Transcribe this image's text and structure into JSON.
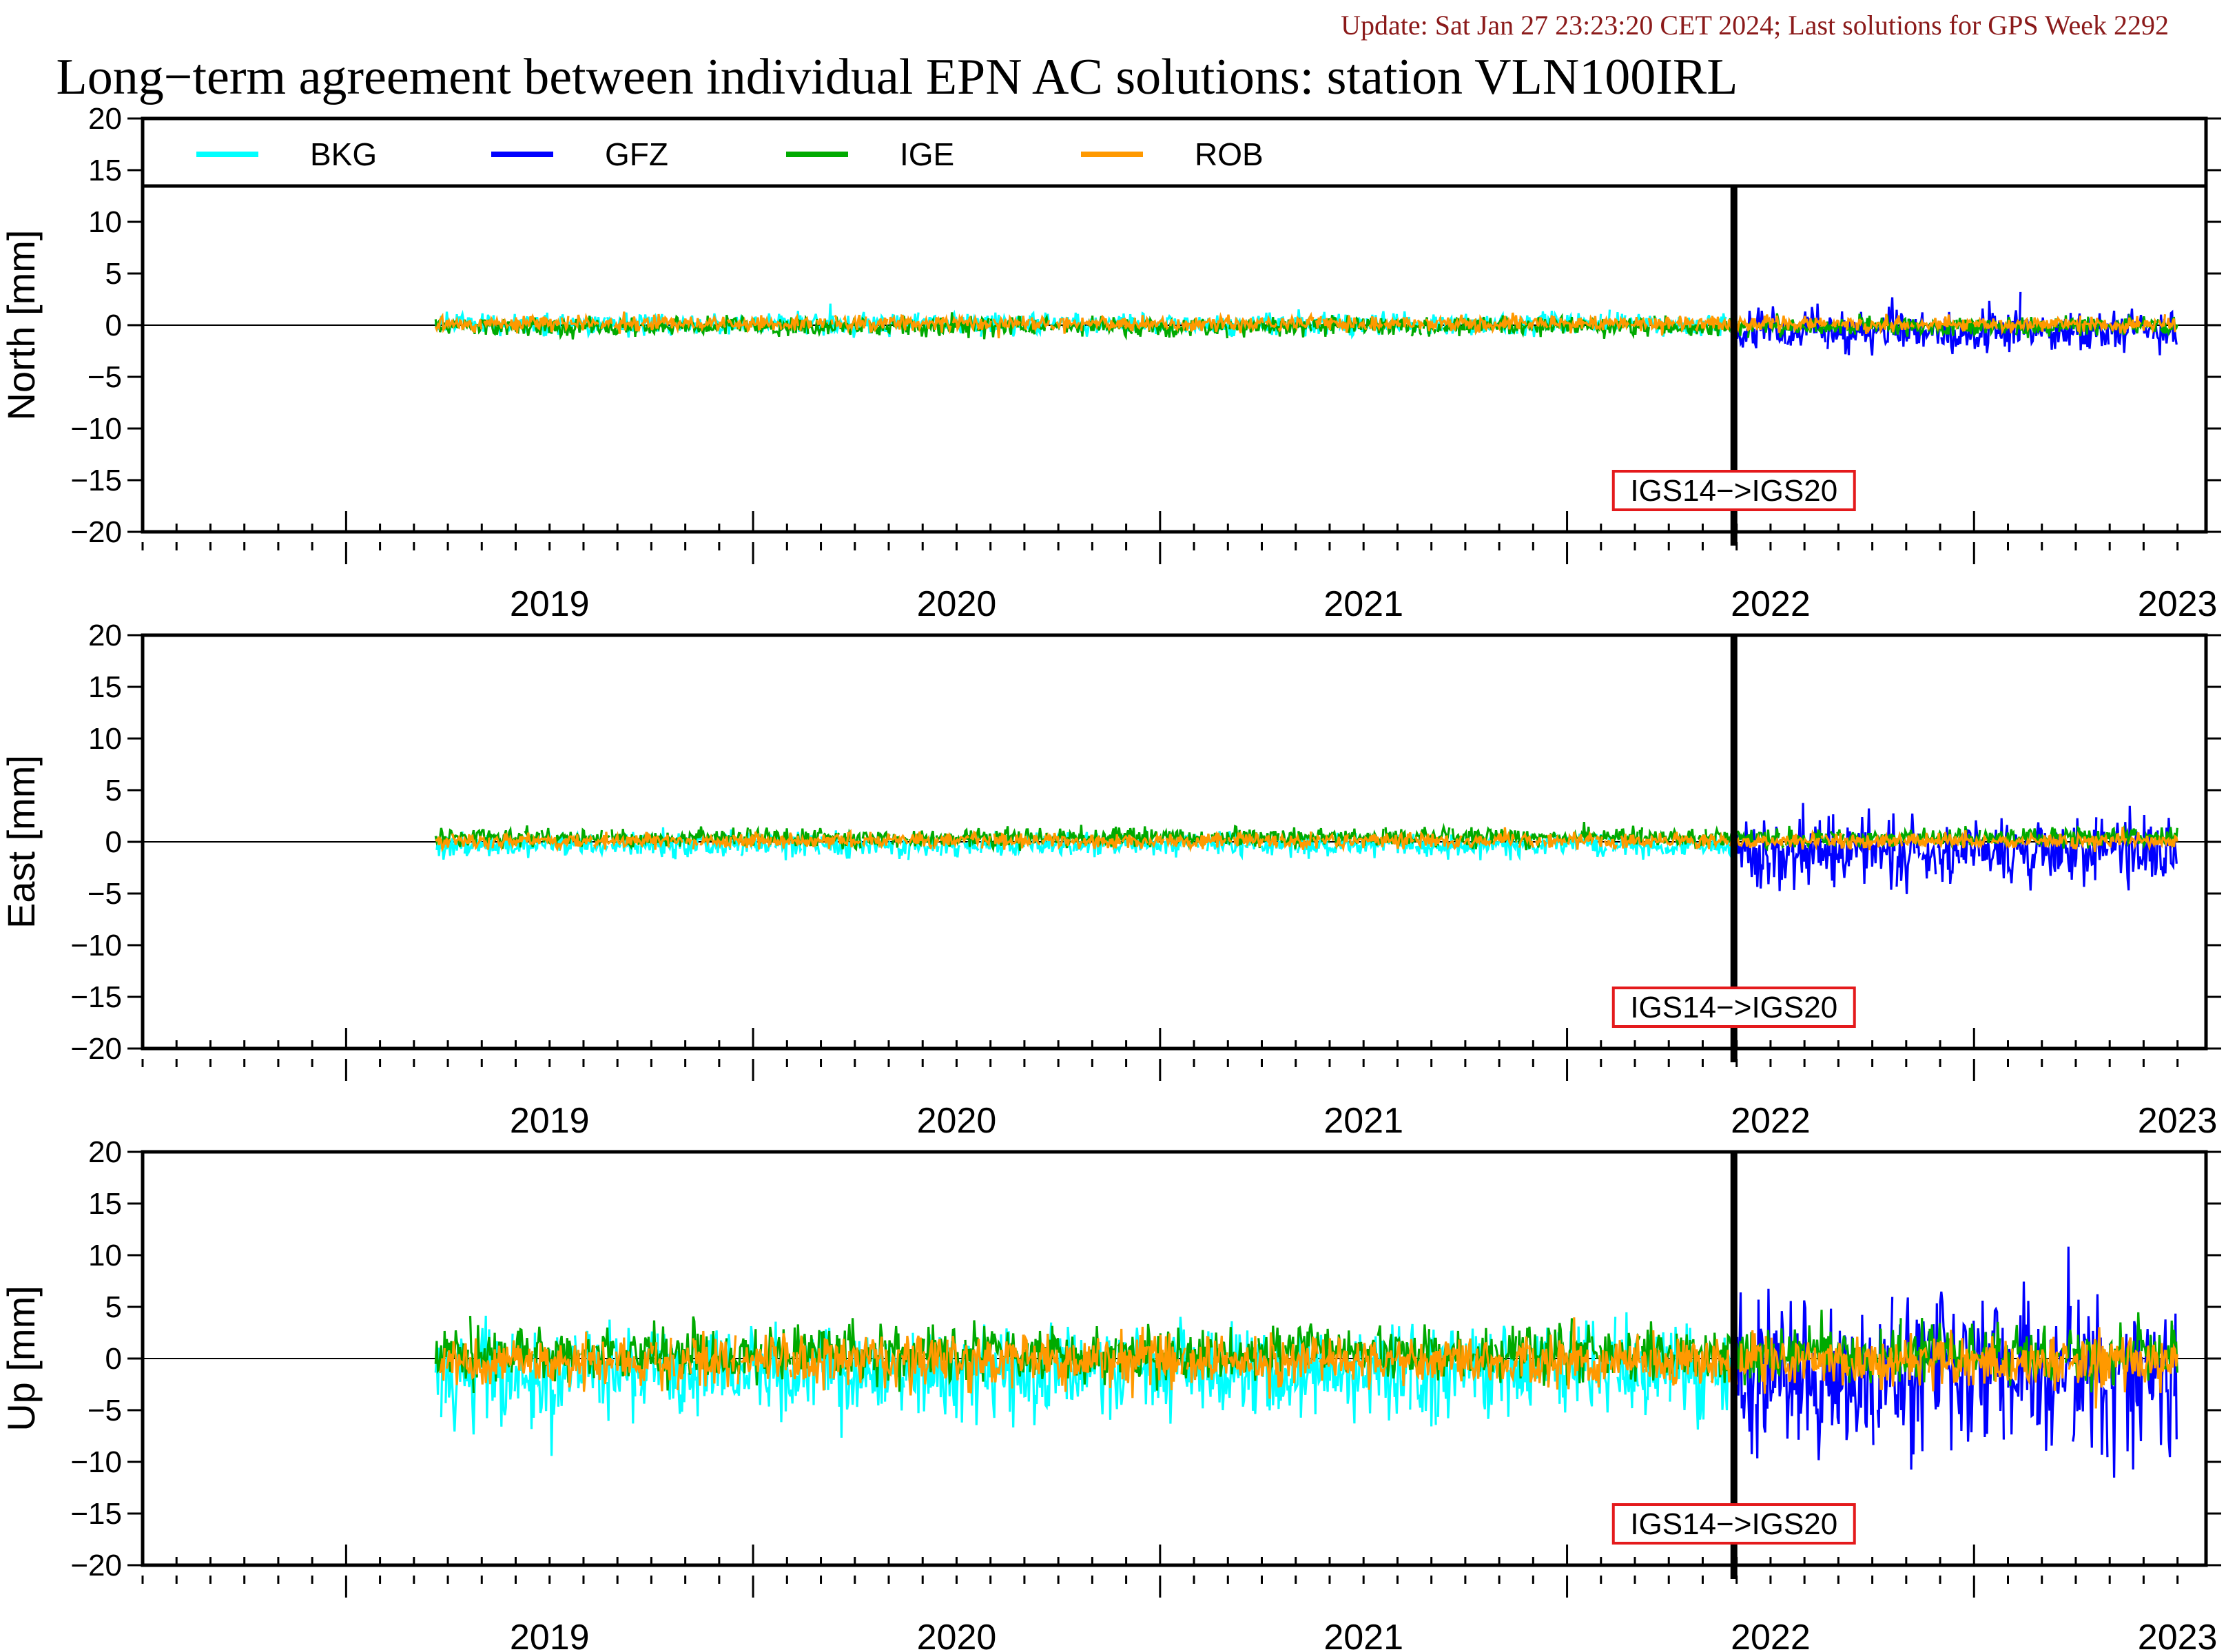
{
  "update_text": "Update: Sat Jan 27 23:23:20 CET 2024; Last solutions for GPS Week 2292",
  "update_color": "#8b1a1a",
  "title": "Long−term agreement between individual EPN AC solutions: station VLN100IRL",
  "transition_label": "IGS14−>IGS20",
  "transition_label_color": "#e41a1c",
  "legend": [
    {
      "name": "BKG",
      "color": "#00ffff"
    },
    {
      "name": "GFZ",
      "color": "#0000ff"
    },
    {
      "name": "IGE",
      "color": "#00aa00"
    },
    {
      "name": "ROB",
      "color": "#ff9900"
    }
  ],
  "chart_data": [
    {
      "type": "line",
      "panel": "north",
      "ylabel": "North [mm]",
      "ylim": [
        -20,
        20
      ],
      "yticks": [
        "20",
        "15",
        "10",
        "5",
        "0",
        "−5",
        "−10",
        "−15",
        "−20"
      ],
      "xlim": [
        2018.5,
        2023.57
      ],
      "year_labels": [
        "2019",
        "2020",
        "2021",
        "2022",
        "2023"
      ],
      "transition_x": 2022.41,
      "series": [
        {
          "name": "BKG",
          "x_start": 2019.22,
          "x_end": 2022.41,
          "amplitude": 0.5,
          "bias": 0.1
        },
        {
          "name": "GFZ",
          "x_start": 2022.41,
          "x_end": 2023.5,
          "amplitude": 1.0,
          "bias": -0.5
        },
        {
          "name": "IGE",
          "x_start": 2019.22,
          "x_end": 2023.5,
          "amplitude": 0.45,
          "bias": -0.1
        },
        {
          "name": "ROB",
          "x_start": 2019.22,
          "x_end": 2023.5,
          "amplitude": 0.35,
          "bias": 0.15
        }
      ]
    },
    {
      "type": "line",
      "panel": "east",
      "ylabel": "East [mm]",
      "ylim": [
        -20,
        20
      ],
      "yticks": [
        "20",
        "15",
        "10",
        "5",
        "0",
        "−5",
        "−10",
        "−15",
        "−20"
      ],
      "xlim": [
        2018.5,
        2023.57
      ],
      "year_labels": [
        "2019",
        "2020",
        "2021",
        "2022",
        "2023"
      ],
      "transition_x": 2022.41,
      "series": [
        {
          "name": "BKG",
          "x_start": 2019.22,
          "x_end": 2022.41,
          "amplitude": 0.55,
          "bias": -0.3
        },
        {
          "name": "GFZ",
          "x_start": 2022.41,
          "x_end": 2023.5,
          "amplitude": 1.6,
          "bias": -1.0
        },
        {
          "name": "IGE",
          "x_start": 2019.22,
          "x_end": 2023.5,
          "amplitude": 0.45,
          "bias": 0.4
        },
        {
          "name": "ROB",
          "x_start": 2019.22,
          "x_end": 2023.5,
          "amplitude": 0.35,
          "bias": 0.1
        }
      ]
    },
    {
      "type": "line",
      "panel": "up",
      "ylabel": "Up [mm]",
      "ylim": [
        -20,
        20
      ],
      "yticks": [
        "20",
        "15",
        "10",
        "5",
        "0",
        "−5",
        "−10",
        "−15",
        "−20"
      ],
      "xlim": [
        2018.5,
        2023.57
      ],
      "year_labels": [
        "2019",
        "2020",
        "2021",
        "2022",
        "2023"
      ],
      "transition_x": 2022.41,
      "series": [
        {
          "name": "BKG",
          "x_start": 2019.22,
          "x_end": 2022.41,
          "amplitude": 2.2,
          "bias": -1.3
        },
        {
          "name": "GFZ",
          "x_start": 2022.41,
          "x_end": 2023.5,
          "amplitude": 3.8,
          "bias": -1.5
        },
        {
          "name": "IGE",
          "x_start": 2019.22,
          "x_end": 2023.5,
          "amplitude": 1.3,
          "bias": 0.5
        },
        {
          "name": "ROB",
          "x_start": 2019.22,
          "x_end": 2023.5,
          "amplitude": 1.2,
          "bias": -0.3
        }
      ]
    }
  ]
}
